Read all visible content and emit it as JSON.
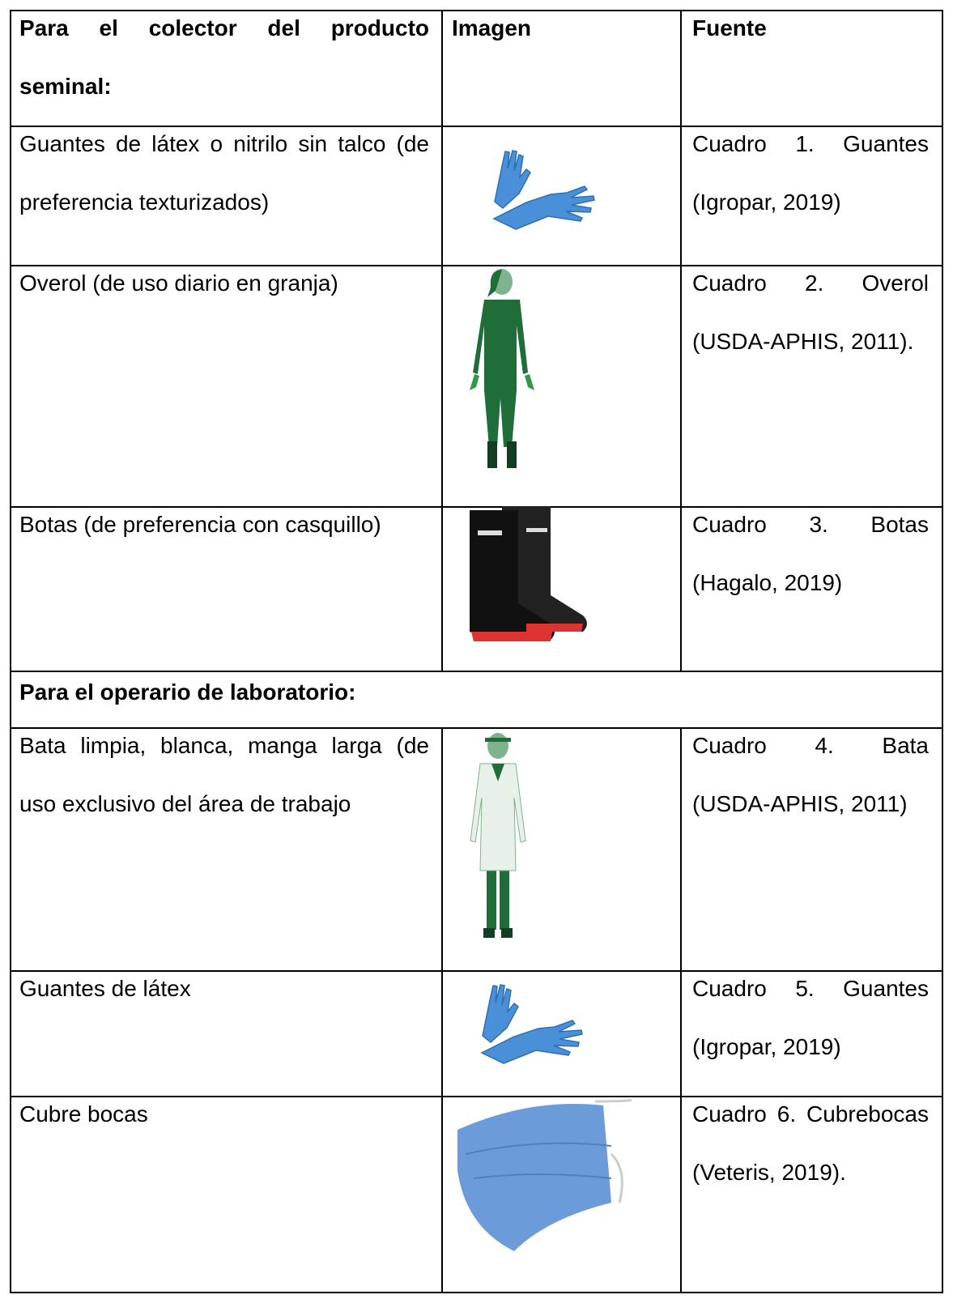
{
  "table": {
    "header": [
      "Para el colector del producto seminal:",
      "Imagen",
      "Fuente"
    ],
    "rows": [
      [
        "Guantes de látex o nitrilo sin talco (de preferencia texturizados)",
        "Cuadro 1. Guantes (Igropar, 2019)"
      ],
      [
        "Overol (de uso diario en granja)",
        "Cuadro 2. Overol (USDA-APHIS, 2011)."
      ],
      [
        "Botas (de preferencia con casquillo)",
        "Cuadro 3. Botas (Hagalo, 2019)"
      ]
    ],
    "section": "Para el operario de laboratorio:",
    "rows2": [
      [
        "Bata limpia, blanca, manga larga (de uso exclusivo del área de trabajo",
        "Cuadro 4. Bata (USDA-APHIS, 2011)"
      ],
      [
        "Guantes de látex",
        "Cuadro 5. Guantes (Igropar, 2019)"
      ],
      [
        "Cubre bocas",
        "Cuadro 6. Cubrebocas (Veteris, 2019)."
      ]
    ]
  }
}
